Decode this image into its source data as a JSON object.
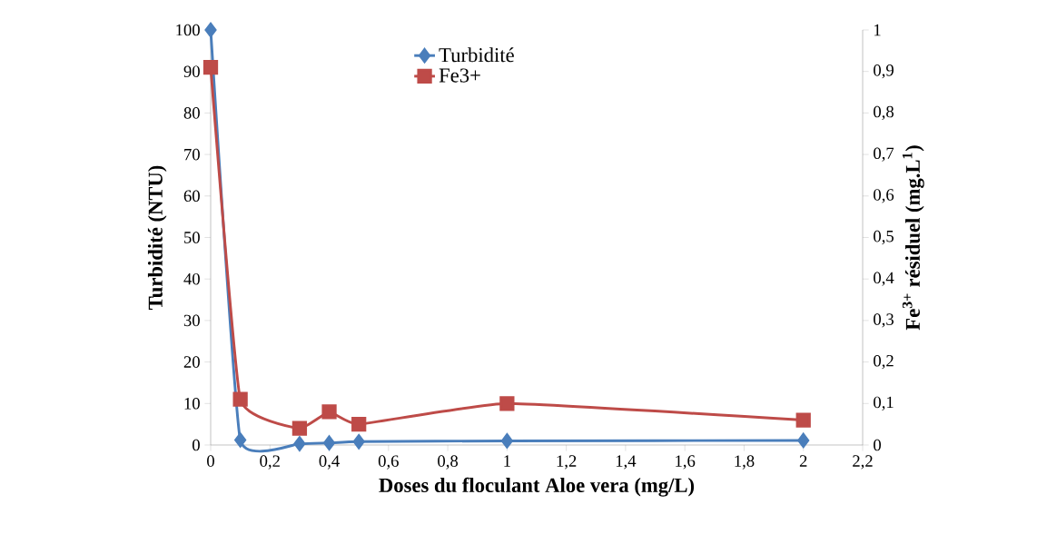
{
  "chart_data": {
    "type": "line",
    "xlabel": "Doses du floculant Aloe vera (mg/L)",
    "ylabel": "Turbidité (NTU)",
    "y2label": "Fe$^{3+}$ résiduel (mg.L$^{1}$)",
    "series": [
      {
        "name": "Turbidité",
        "color": "#4a7ebb",
        "marker": "diamond",
        "x": [
          0,
          0.1,
          0.3,
          0.4,
          0.5,
          1,
          2
        ],
        "values": [
          100,
          1.2,
          0.3,
          0.5,
          0.8,
          1,
          1.1
        ]
      },
      {
        "name": "Fe3+",
        "color": "#be4b48",
        "marker": "square",
        "axis": "y2",
        "x": [
          0,
          0.1,
          0.3,
          0.4,
          0.5,
          1,
          2
        ],
        "values": [
          0.91,
          0.11,
          0.04,
          0.08,
          0.05,
          0.1,
          0.06
        ]
      }
    ],
    "xlim": [
      0,
      2.2
    ],
    "xticks": [
      0,
      {
        "value": 0.2,
        "label": "0,2"
      },
      {
        "value": 0.4,
        "label": "0,4"
      },
      {
        "value": 0.6,
        "label": "0,6"
      },
      {
        "value": 0.8,
        "label": "0,8"
      },
      1,
      {
        "value": 1.2,
        "label": "1,2"
      },
      {
        "value": 1.4,
        "label": "1,4"
      },
      {
        "value": 1.6,
        "label": "1,6"
      },
      {
        "value": 1.8,
        "label": "1,8"
      },
      2,
      {
        "value": 2.2,
        "label": "2,2"
      }
    ],
    "ylim": [
      0,
      100
    ],
    "yticks": [
      0,
      10,
      20,
      30,
      40,
      50,
      60,
      70,
      80,
      90,
      100
    ],
    "y2lim": [
      0,
      1
    ],
    "y2ticks": [
      0,
      {
        "value": 0.1,
        "label": "0,1"
      },
      {
        "value": 0.2,
        "label": "0,2"
      },
      {
        "value": 0.3,
        "label": "0,3"
      },
      {
        "value": 0.4,
        "label": "0,4"
      },
      {
        "value": 0.5,
        "label": "0,5"
      },
      {
        "value": 0.6,
        "label": "0,6"
      },
      {
        "value": 0.7,
        "label": "0,7"
      },
      {
        "value": 0.8,
        "label": "0,8"
      },
      {
        "value": 0.9,
        "label": "0,9"
      },
      1
    ],
    "legend": "top",
    "grid": false,
    "line_style": "solid"
  }
}
